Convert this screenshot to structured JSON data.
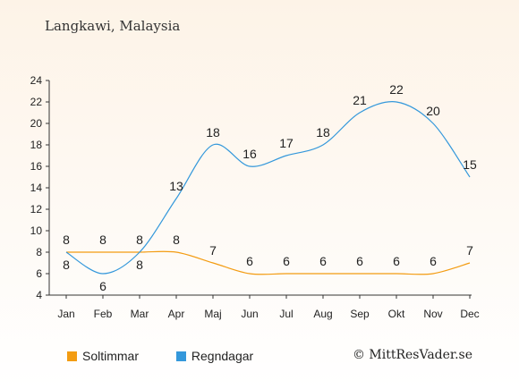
{
  "title": "Langkawi, Malaysia",
  "credit": "© MittResVader.se",
  "chart_data": {
    "type": "line",
    "categories": [
      "Jan",
      "Feb",
      "Mar",
      "Apr",
      "Maj",
      "Jun",
      "Jul",
      "Aug",
      "Sep",
      "Okt",
      "Nov",
      "Dec"
    ],
    "series": [
      {
        "name": "Soltimmar",
        "color": "#f39c12",
        "values": [
          8,
          8,
          8,
          8,
          7,
          6,
          6,
          6,
          6,
          6,
          6,
          7
        ]
      },
      {
        "name": "Regndagar",
        "color": "#3498db",
        "values": [
          8,
          6,
          8,
          13,
          18,
          16,
          17,
          18,
          21,
          22,
          20,
          15
        ]
      }
    ],
    "ylim": [
      4,
      24
    ],
    "yticks": [
      4,
      6,
      8,
      10,
      12,
      14,
      16,
      18,
      20,
      22,
      24
    ],
    "grid": false,
    "legend": "bottom-left"
  }
}
